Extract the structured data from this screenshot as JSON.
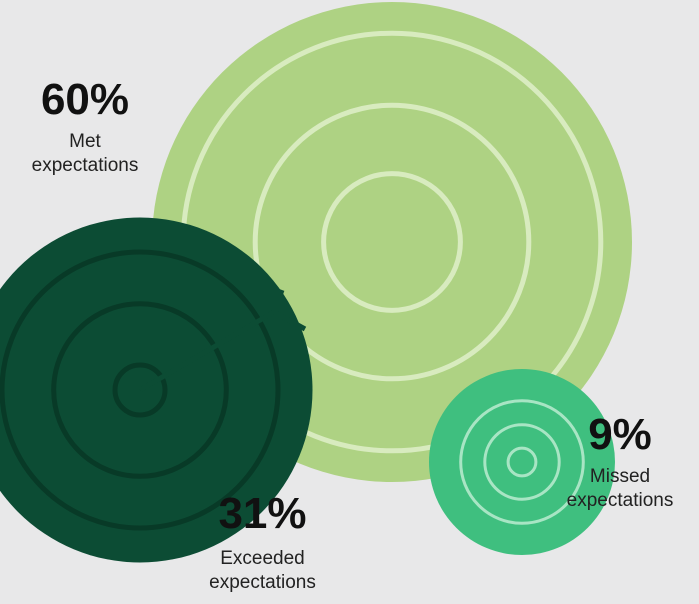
{
  "chart_data": {
    "type": "bubble",
    "series": [
      {
        "name": "Met expectations",
        "value": 60,
        "label": "60%",
        "caption_line1": "Met",
        "caption_line2": "expectations",
        "color": "#aed283",
        "ring_color": "#d8ebbf"
      },
      {
        "name": "Exceeded expectations",
        "value": 31,
        "label": "31%",
        "caption_line1": "Exceeded",
        "caption_line2": "expectations",
        "color": "#0c4c34",
        "ring_color": "#083a27"
      },
      {
        "name": "Missed expectations",
        "value": 9,
        "label": "9%",
        "caption_line1": "Missed",
        "caption_line2": "expectations",
        "color": "#3fbf7f",
        "ring_color": "#a8e5c4"
      }
    ],
    "arrow_color": "#0c4c34",
    "background": "#e8e8e9"
  }
}
